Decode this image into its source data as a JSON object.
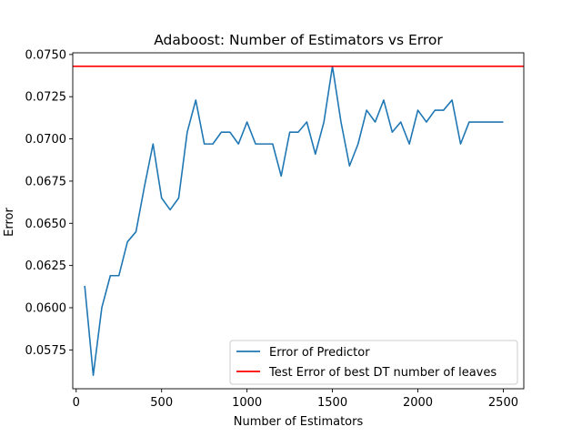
{
  "chart_data": {
    "type": "line",
    "title": "Adaboost: Number of Estimators vs Error",
    "xlabel": "Number of Estimators",
    "ylabel": "Error",
    "xlim": [
      -20,
      2620
    ],
    "ylim": [
      0.0552,
      0.0751
    ],
    "xticks": [
      0,
      500,
      1000,
      1500,
      2000,
      2500
    ],
    "xtick_labels": [
      "0",
      "500",
      "1000",
      "1500",
      "2000",
      "2500"
    ],
    "yticks": [
      0.0575,
      0.06,
      0.0625,
      0.065,
      0.0675,
      0.07,
      0.0725,
      0.075
    ],
    "ytick_labels": [
      "0.0575",
      "0.0600",
      "0.0625",
      "0.0650",
      "0.0675",
      "0.0700",
      "0.0725",
      "0.0750"
    ],
    "grid": false,
    "legend_position": "lower-right",
    "series": [
      {
        "name": "Error of Predictor",
        "color": "#1f77b4",
        "x": [
          50,
          100,
          150,
          200,
          250,
          300,
          350,
          400,
          450,
          500,
          550,
          600,
          650,
          700,
          750,
          800,
          850,
          900,
          950,
          1000,
          1050,
          1100,
          1150,
          1200,
          1250,
          1300,
          1350,
          1400,
          1450,
          1500,
          1550,
          1600,
          1650,
          1700,
          1750,
          1800,
          1850,
          1900,
          1950,
          2000,
          2050,
          2100,
          2150,
          2200,
          2250,
          2300,
          2350,
          2400,
          2450,
          2500
        ],
        "y": [
          0.0613,
          0.056,
          0.06,
          0.0619,
          0.0619,
          0.0639,
          0.0645,
          0.0672,
          0.0697,
          0.0665,
          0.0658,
          0.0665,
          0.0704,
          0.0723,
          0.0697,
          0.0697,
          0.0704,
          0.0704,
          0.0697,
          0.071,
          0.0697,
          0.0697,
          0.0697,
          0.0678,
          0.0704,
          0.0704,
          0.071,
          0.0691,
          0.071,
          0.0743,
          0.071,
          0.0684,
          0.0697,
          0.0717,
          0.071,
          0.0723,
          0.0704,
          0.071,
          0.0697,
          0.0717,
          0.071,
          0.0717,
          0.0717,
          0.0723,
          0.0697,
          0.071,
          0.071,
          0.071,
          0.071,
          0.071
        ]
      },
      {
        "name": "Test Error of best DT number of leaves",
        "color": "#ff0000",
        "hline": 0.0743
      }
    ]
  }
}
